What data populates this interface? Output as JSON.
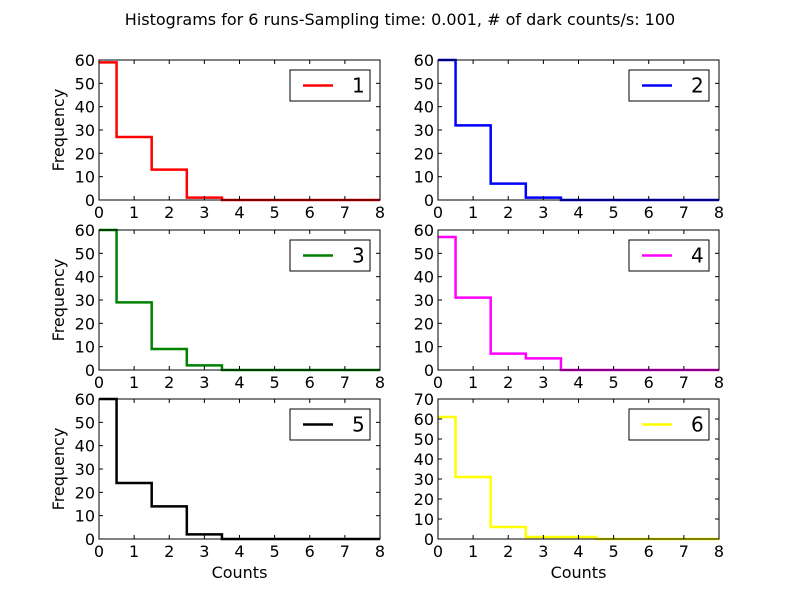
{
  "figure": {
    "title": "Histograms for 6 runs-Sampling time: 0.001, # of dark counts/s: 100"
  },
  "chart_data": [
    {
      "type": "histogram",
      "panel": 1,
      "legend": "1",
      "color": "#ff0000",
      "xlim": [
        0,
        8
      ],
      "ylim": [
        0,
        60
      ],
      "xticks": [
        "0",
        "1",
        "2",
        "3",
        "4",
        "5",
        "6",
        "7",
        "8"
      ],
      "yticks": [
        "0",
        "10",
        "20",
        "30",
        "40",
        "50",
        "60"
      ],
      "ylabel": "Frequency",
      "xlabel": "",
      "bins": [
        0,
        1,
        2,
        3,
        4,
        5,
        6,
        7,
        8
      ],
      "values": [
        59,
        27,
        13,
        1,
        0,
        0,
        0,
        0,
        0
      ]
    },
    {
      "type": "histogram",
      "panel": 2,
      "legend": "2",
      "color": "#0000ff",
      "xlim": [
        0,
        8
      ],
      "ylim": [
        0,
        60
      ],
      "xticks": [
        "0",
        "1",
        "2",
        "3",
        "4",
        "5",
        "6",
        "7",
        "8"
      ],
      "yticks": [
        "0",
        "10",
        "20",
        "30",
        "40",
        "50",
        "60"
      ],
      "ylabel": "",
      "xlabel": "",
      "bins": [
        0,
        1,
        2,
        3,
        4,
        5,
        6,
        7,
        8
      ],
      "values": [
        60,
        32,
        7,
        1,
        0,
        0,
        0,
        0,
        0
      ]
    },
    {
      "type": "histogram",
      "panel": 3,
      "legend": "3",
      "color": "#008000",
      "xlim": [
        0,
        8
      ],
      "ylim": [
        0,
        60
      ],
      "xticks": [
        "0",
        "1",
        "2",
        "3",
        "4",
        "5",
        "6",
        "7",
        "8"
      ],
      "yticks": [
        "0",
        "10",
        "20",
        "30",
        "40",
        "50",
        "60"
      ],
      "ylabel": "Frequency",
      "xlabel": "",
      "bins": [
        0,
        1,
        2,
        3,
        4,
        5,
        6,
        7,
        8
      ],
      "values": [
        60,
        29,
        9,
        2,
        0,
        0,
        0,
        0,
        0
      ]
    },
    {
      "type": "histogram",
      "panel": 4,
      "legend": "4",
      "color": "#ff00ff",
      "xlim": [
        0,
        8
      ],
      "ylim": [
        0,
        60
      ],
      "xticks": [
        "0",
        "1",
        "2",
        "3",
        "4",
        "5",
        "6",
        "7",
        "8"
      ],
      "yticks": [
        "0",
        "10",
        "20",
        "30",
        "40",
        "50",
        "60"
      ],
      "ylabel": "",
      "xlabel": "",
      "bins": [
        0,
        1,
        2,
        3,
        4,
        5,
        6,
        7,
        8
      ],
      "values": [
        57,
        31,
        7,
        5,
        0,
        0,
        0,
        0,
        0
      ]
    },
    {
      "type": "histogram",
      "panel": 5,
      "legend": "5",
      "color": "#000000",
      "xlim": [
        0,
        8
      ],
      "ylim": [
        0,
        60
      ],
      "xticks": [
        "0",
        "1",
        "2",
        "3",
        "4",
        "5",
        "6",
        "7",
        "8"
      ],
      "yticks": [
        "0",
        "10",
        "20",
        "30",
        "40",
        "50",
        "60"
      ],
      "ylabel": "Frequency",
      "xlabel": "Counts",
      "bins": [
        0,
        1,
        2,
        3,
        4,
        5,
        6,
        7,
        8
      ],
      "values": [
        60,
        24,
        14,
        2,
        0,
        0,
        0,
        0,
        0
      ]
    },
    {
      "type": "histogram",
      "panel": 6,
      "legend": "6",
      "color": "#ffff00",
      "xlim": [
        0,
        8
      ],
      "ylim": [
        0,
        70
      ],
      "xticks": [
        "0",
        "1",
        "2",
        "3",
        "4",
        "5",
        "6",
        "7",
        "8"
      ],
      "yticks": [
        "0",
        "10",
        "20",
        "30",
        "40",
        "50",
        "60",
        "70"
      ],
      "ylabel": "",
      "xlabel": "Counts",
      "bins": [
        0,
        1,
        2,
        3,
        4,
        5,
        6,
        7,
        8
      ],
      "values": [
        61,
        31,
        6,
        1,
        1,
        0,
        0,
        0,
        0
      ]
    }
  ]
}
